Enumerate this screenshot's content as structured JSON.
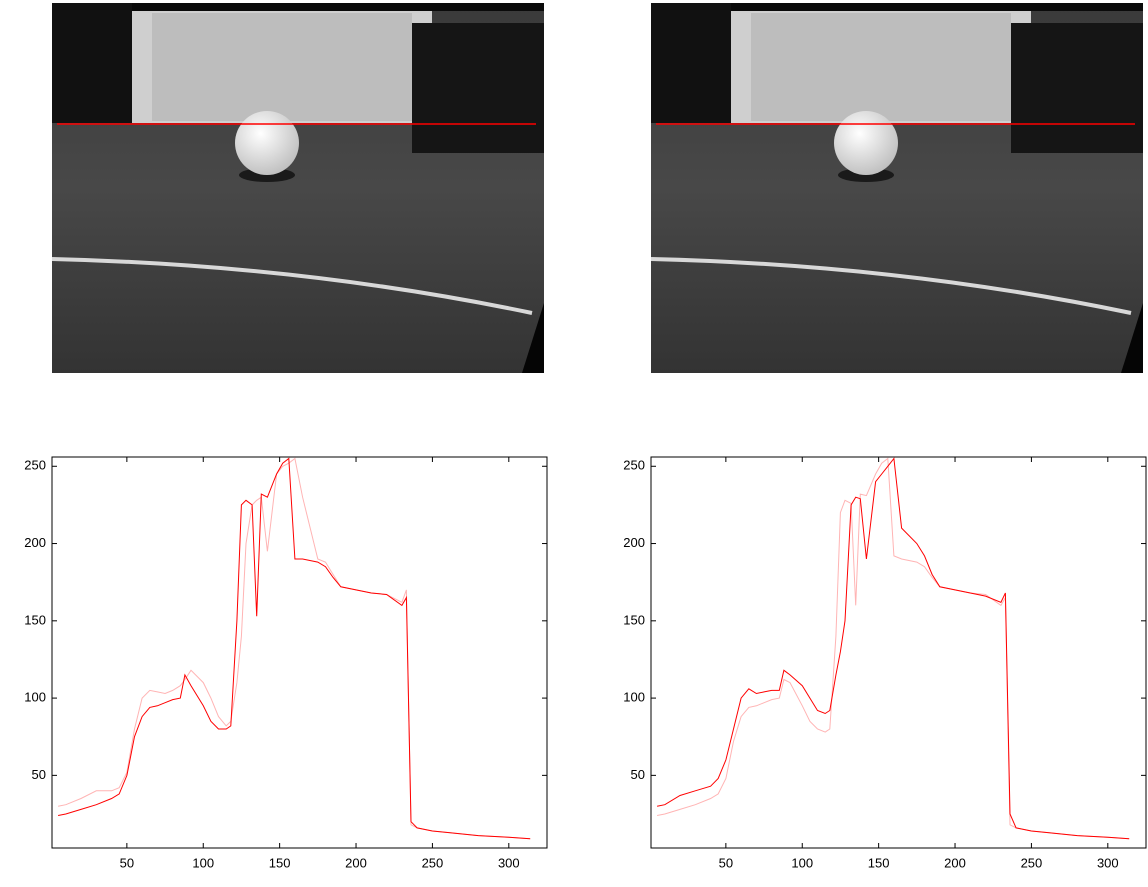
{
  "chart_data": [
    {
      "type": "line",
      "x": [
        5,
        10,
        20,
        30,
        40,
        45,
        50,
        55,
        60,
        65,
        70,
        75,
        80,
        85,
        88,
        92,
        100,
        105,
        110,
        115,
        118,
        122,
        125,
        128,
        132,
        135,
        138,
        142,
        148,
        152,
        156,
        160,
        165,
        175,
        180,
        185,
        190,
        200,
        210,
        220,
        230,
        233,
        236,
        240,
        250,
        260,
        280,
        300,
        314
      ],
      "series": [
        {
          "color": "#ffb4b4",
          "values": [
            30,
            31,
            35,
            40,
            40,
            42,
            52,
            80,
            100,
            105,
            104,
            103,
            105,
            108,
            112,
            118,
            110,
            100,
            88,
            82,
            85,
            110,
            140,
            200,
            225,
            228,
            230,
            195,
            245,
            250,
            252,
            255,
            230,
            190,
            188,
            180,
            172,
            170,
            168,
            167,
            162,
            170,
            18,
            16,
            14,
            13,
            11,
            10,
            9
          ]
        },
        {
          "color": "#ff0000",
          "values": [
            24,
            25,
            28,
            31,
            35,
            38,
            50,
            75,
            88,
            94,
            95,
            97,
            99,
            100,
            115,
            108,
            95,
            85,
            80,
            80,
            82,
            150,
            225,
            228,
            225,
            153,
            232,
            230,
            245,
            252,
            255,
            190,
            190,
            188,
            185,
            178,
            172,
            170,
            168,
            167,
            160,
            165,
            20,
            16,
            14,
            13,
            11,
            10,
            9
          ]
        }
      ],
      "xlim": [
        1,
        325
      ],
      "ylim": [
        3,
        256
      ],
      "xticks": [
        50,
        100,
        150,
        200,
        250,
        300
      ],
      "yticks": [
        50,
        100,
        150,
        200,
        250
      ]
    },
    {
      "type": "line",
      "x": [
        5,
        10,
        20,
        30,
        40,
        45,
        50,
        55,
        60,
        65,
        70,
        75,
        80,
        85,
        88,
        92,
        100,
        105,
        110,
        115,
        118,
        122,
        125,
        128,
        132,
        135,
        138,
        142,
        148,
        152,
        156,
        160,
        165,
        175,
        180,
        185,
        190,
        200,
        210,
        220,
        230,
        233,
        236,
        240,
        250,
        260,
        280,
        300,
        314
      ],
      "series": [
        {
          "color": "#ffb4b4",
          "values": [
            24,
            25,
            28,
            31,
            35,
            38,
            48,
            72,
            88,
            94,
            95,
            97,
            99,
            100,
            112,
            110,
            95,
            85,
            80,
            78,
            80,
            140,
            220,
            228,
            226,
            160,
            232,
            231,
            245,
            252,
            255,
            192,
            190,
            188,
            185,
            178,
            172,
            170,
            168,
            167,
            160,
            165,
            18,
            16,
            14,
            13,
            11,
            10,
            9
          ]
        },
        {
          "color": "#ff0000",
          "values": [
            30,
            31,
            37,
            40,
            43,
            48,
            60,
            80,
            100,
            106,
            103,
            104,
            105,
            105,
            118,
            115,
            108,
            100,
            92,
            90,
            92,
            115,
            130,
            150,
            225,
            230,
            229,
            190,
            240,
            245,
            250,
            255,
            210,
            200,
            192,
            180,
            172,
            170,
            168,
            166,
            162,
            168,
            25,
            16,
            14,
            13,
            11,
            10,
            9
          ]
        }
      ],
      "xlim": [
        1,
        325
      ],
      "ylim": [
        3,
        256
      ],
      "xticks": [
        50,
        100,
        150,
        200,
        250,
        300
      ],
      "yticks": [
        50,
        100,
        150,
        200,
        250
      ]
    }
  ]
}
